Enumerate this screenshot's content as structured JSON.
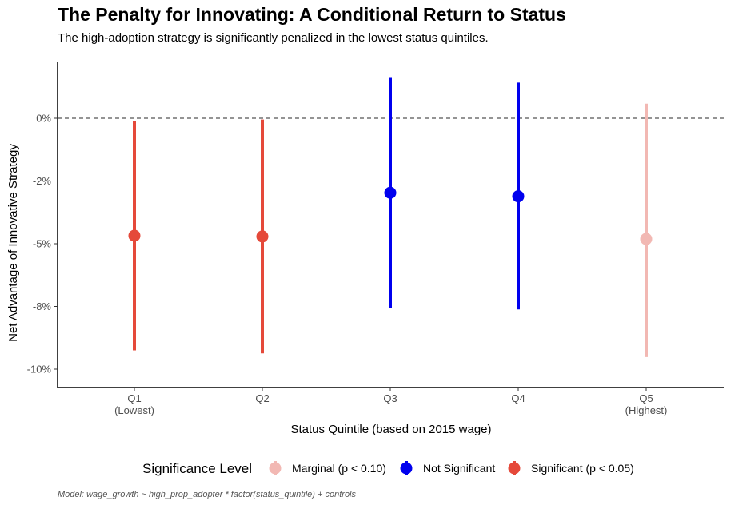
{
  "title": "The Penalty for Innovating: A Conditional Return to Status",
  "subtitle": "The high-adoption strategy is significantly penalized in the lowest status quintiles.",
  "caption": "Model: wage_growth ~ high_prop_adopter * factor(status_quintile) + controls",
  "colors": {
    "significant": "#e5493a",
    "not_significant": "#0000ee",
    "marginal": "#f2b8b3",
    "reference_line": "#555555"
  },
  "chart_data": {
    "type": "scatter",
    "subtype": "point-range",
    "title": "The Penalty for Innovating: A Conditional Return to Status",
    "subtitle": "The high-adoption strategy is significantly penalized in the lowest status quintiles.",
    "xlabel": "Status Quintile (based on 2015 wage)",
    "ylabel": "Net Advantage of Innovative Strategy",
    "categories": [
      "Q1\n(Lowest)",
      "Q2",
      "Q3",
      "Q4",
      "Q5\n(Highest)"
    ],
    "ylim": [
      -0.107,
      0.022
    ],
    "yticks": [
      0,
      -0.025,
      -0.05,
      -0.075,
      -0.1
    ],
    "ytick_labels": [
      "0%",
      "-2%",
      "-5%",
      "-8%",
      "-10%"
    ],
    "reference_line": 0,
    "points": [
      {
        "category": "Q1\n(Lowest)",
        "estimate": -0.0468,
        "lower": -0.0925,
        "upper": -0.0012,
        "significance": "Significant (p < 0.05)"
      },
      {
        "category": "Q2",
        "estimate": -0.0471,
        "lower": -0.0937,
        "upper": -0.0005,
        "significance": "Significant (p < 0.05)"
      },
      {
        "category": "Q3",
        "estimate": -0.0297,
        "lower": -0.0757,
        "upper": 0.0164,
        "significance": "Not Significant"
      },
      {
        "category": "Q4",
        "estimate": -0.0311,
        "lower": -0.0762,
        "upper": 0.0142,
        "significance": "Not Significant"
      },
      {
        "category": "Q5\n(Highest)",
        "estimate": -0.0481,
        "lower": -0.0952,
        "upper": 0.0058,
        "significance": "Marginal (p < 0.10)"
      }
    ],
    "legend": {
      "title": "Significance Level",
      "position": "bottom",
      "entries": [
        {
          "label": "Marginal (p < 0.10)",
          "color": "#f2b8b3"
        },
        {
          "label": "Not Significant",
          "color": "#0000ee"
        },
        {
          "label": "Significant (p < 0.05)",
          "color": "#e5493a"
        }
      ]
    },
    "grid": false
  }
}
